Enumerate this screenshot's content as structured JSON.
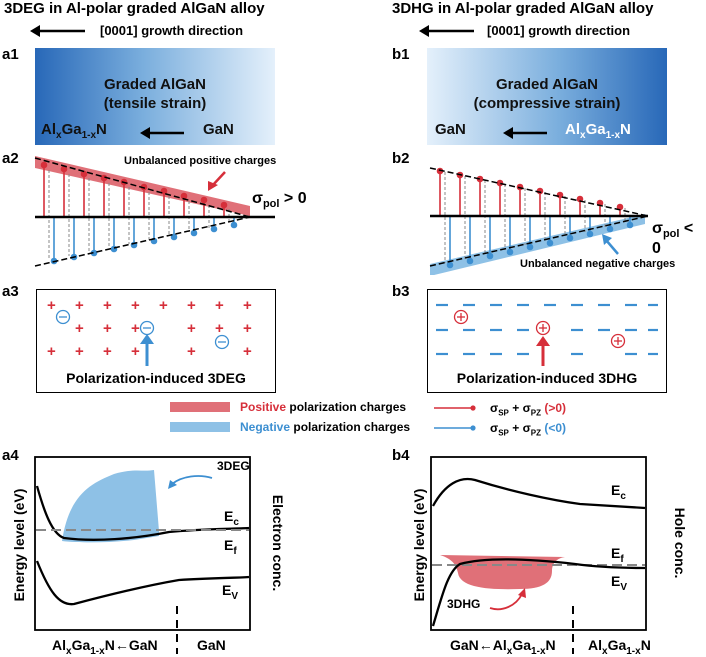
{
  "left": {
    "title": "3DEG in Al-polar graded AlGaN alloy",
    "growth": "[0001] growth direction",
    "panel_a1": "a1",
    "panel_a2": "a2",
    "panel_a3": "a3",
    "panel_a4": "a4",
    "box_line1": "Graded AlGaN",
    "box_line2": "(tensile strain)",
    "box_left": "AlxGa1-xN",
    "box_right": "GaN",
    "unbalanced": "Unbalanced positive charges",
    "sigma": "σpol > 0",
    "caption": "Polarization-induced 3DEG",
    "cloud_label": "3DEG",
    "ylabel": "Energy level (eV)",
    "right_label": "Electron conc.",
    "xlabel_left": "AlxGa1-xN←GaN",
    "xlabel_right": "GaN",
    "band_ec": "Ec",
    "band_ef": "Ef",
    "band_ev": "EV"
  },
  "right": {
    "title": "3DHG in Al-polar graded AlGaN alloy",
    "growth": "[0001] growth direction",
    "panel_b1": "b1",
    "panel_b2": "b2",
    "panel_b3": "b3",
    "panel_b4": "b4",
    "box_line1": "Graded AlGaN",
    "box_line2": "(compressive strain)",
    "box_left": "GaN",
    "box_right": "AlxGa1-xN",
    "unbalanced": "Unbalanced negative charges",
    "sigma": "σpol < 0",
    "caption": "Polarization-induced 3DHG",
    "cloud_label": "3DHG",
    "ylabel": "Energy level (eV)",
    "right_label": "Hole conc.",
    "xlabel_left": "GaN←AlxGa1-xN",
    "xlabel_right": "AlxGa1-xN",
    "band_ec": "Ec",
    "band_ef": "Ef",
    "band_ev": "EV"
  },
  "legend": {
    "positive_word": "Positive",
    "positive_rest": " polarization charges",
    "negative_word": "Negative",
    "negative_rest": " polarization charges",
    "sum_pos": "σSP + σPZ (>0)",
    "sum_neg": "σSP + σPZ (<0)"
  },
  "colors": {
    "red": "#d62f3a",
    "blue": "#3d8fd1",
    "light_red": "#e07078",
    "light_blue": "#8ec1e6"
  }
}
